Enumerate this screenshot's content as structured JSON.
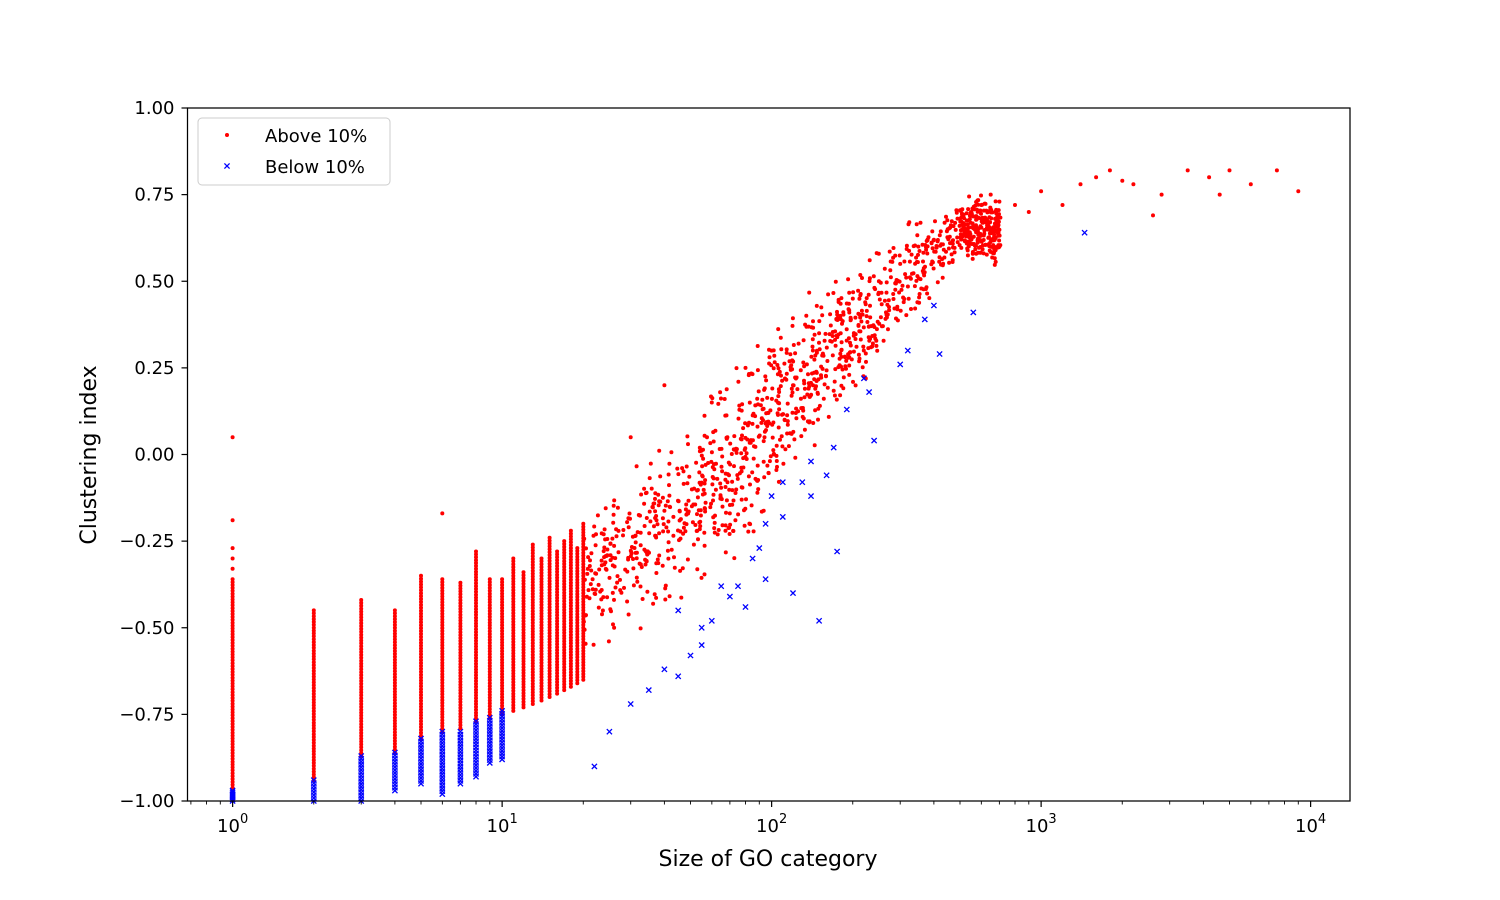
{
  "chart_data": {
    "type": "scatter",
    "title": "",
    "xlabel": "Size of GO category",
    "ylabel": "Clustering index",
    "xscale": "log",
    "xlim": [
      0.68,
      14000
    ],
    "ylim": [
      -1.0,
      1.0
    ],
    "grid": false,
    "legend_position": "top-left",
    "xticks": [
      {
        "value": 1,
        "base": "10",
        "exp": "0"
      },
      {
        "value": 10,
        "base": "10",
        "exp": "1"
      },
      {
        "value": 100,
        "base": "10",
        "exp": "2"
      },
      {
        "value": 1000,
        "base": "10",
        "exp": "3"
      },
      {
        "value": 10000,
        "base": "10",
        "exp": "4"
      }
    ],
    "yticks": [
      {
        "value": 1.0,
        "label": "1.00"
      },
      {
        "value": 0.75,
        "label": "0.75"
      },
      {
        "value": 0.5,
        "label": "0.50"
      },
      {
        "value": 0.25,
        "label": "0.25"
      },
      {
        "value": 0.0,
        "label": "0.00"
      },
      {
        "value": -0.25,
        "label": "−0.25"
      },
      {
        "value": -0.5,
        "label": "−0.50"
      },
      {
        "value": -0.75,
        "label": "−0.75"
      },
      {
        "value": -1.0,
        "label": "−1.00"
      }
    ],
    "series": [
      {
        "name": "Above 10%",
        "color": "#ff0000",
        "marker": "dot",
        "columns": [
          {
            "x": 1,
            "ymin": -0.97,
            "ymax": -0.36
          },
          {
            "x": 2,
            "ymin": -0.94,
            "ymax": -0.45
          },
          {
            "x": 3,
            "ymin": -0.87,
            "ymax": -0.42
          },
          {
            "x": 4,
            "ymin": -0.86,
            "ymax": -0.45
          },
          {
            "x": 5,
            "ymin": -0.82,
            "ymax": -0.35
          },
          {
            "x": 6,
            "ymin": -0.8,
            "ymax": -0.36
          },
          {
            "x": 7,
            "ymin": -0.79,
            "ymax": -0.37
          },
          {
            "x": 8,
            "ymin": -0.77,
            "ymax": -0.28
          },
          {
            "x": 9,
            "ymin": -0.76,
            "ymax": -0.36
          },
          {
            "x": 10,
            "ymin": -0.75,
            "ymax": -0.36
          },
          {
            "x": 11,
            "ymin": -0.74,
            "ymax": -0.3
          },
          {
            "x": 12,
            "ymin": -0.73,
            "ymax": -0.34
          },
          {
            "x": 13,
            "ymin": -0.72,
            "ymax": -0.26
          },
          {
            "x": 14,
            "ymin": -0.71,
            "ymax": -0.3
          },
          {
            "x": 15,
            "ymin": -0.7,
            "ymax": -0.24
          },
          {
            "x": 16,
            "ymin": -0.69,
            "ymax": -0.28
          },
          {
            "x": 17,
            "ymin": -0.68,
            "ymax": -0.25
          },
          {
            "x": 18,
            "ymin": -0.67,
            "ymax": -0.22
          },
          {
            "x": 19,
            "ymin": -0.66,
            "ymax": -0.27
          },
          {
            "x": 20,
            "ymin": -0.65,
            "ymax": -0.2
          }
        ],
        "points": [
          [
            1,
            0.05
          ],
          [
            1,
            -0.19
          ],
          [
            1,
            -0.27
          ],
          [
            1,
            -0.3
          ],
          [
            1,
            -0.33
          ],
          [
            6,
            -0.17
          ],
          [
            40,
            0.2
          ],
          [
            30,
            0.05
          ],
          [
            60,
            0.15
          ],
          [
            80,
            0.25
          ],
          [
            100,
            0.3
          ],
          [
            120,
            0.2
          ],
          [
            150,
            0.35
          ],
          [
            180,
            0.4
          ],
          [
            200,
            0.45
          ],
          [
            250,
            0.5
          ],
          [
            300,
            0.55
          ],
          [
            350,
            0.6
          ],
          [
            400,
            0.62
          ],
          [
            450,
            0.65
          ],
          [
            500,
            0.68
          ],
          [
            550,
            0.7
          ],
          [
            600,
            0.72
          ],
          [
            650,
            0.75
          ],
          [
            700,
            0.73
          ],
          [
            800,
            0.72
          ],
          [
            900,
            0.7
          ],
          [
            1000,
            0.76
          ],
          [
            1200,
            0.72
          ],
          [
            1400,
            0.78
          ],
          [
            1600,
            0.8
          ],
          [
            1800,
            0.82
          ],
          [
            2000,
            0.79
          ],
          [
            2200,
            0.78
          ],
          [
            2600,
            0.69
          ],
          [
            2800,
            0.75
          ],
          [
            3500,
            0.82
          ],
          [
            4200,
            0.8
          ],
          [
            4600,
            0.75
          ],
          [
            5000,
            0.82
          ],
          [
            6000,
            0.78
          ],
          [
            7500,
            0.82
          ],
          [
            9000,
            0.76
          ],
          [
            700,
            0.6
          ],
          [
            550,
            0.62
          ]
        ],
        "bulk": [
          {
            "x": 20,
            "ymid": -0.38,
            "spread": 0.15
          },
          {
            "x": 50,
            "ymid": -0.15,
            "spread": 0.2
          },
          {
            "x": 100,
            "ymid": 0.1,
            "spread": 0.2
          },
          {
            "x": 200,
            "ymid": 0.35,
            "spread": 0.15
          },
          {
            "x": 500,
            "ymid": 0.65,
            "spread": 0.08
          }
        ]
      },
      {
        "name": "Below 10%",
        "color": "#0000ff",
        "marker": "x",
        "columns": [
          {
            "x": 1,
            "ymin": -1.0,
            "ymax": -0.97
          },
          {
            "x": 2,
            "ymin": -1.0,
            "ymax": -0.94
          },
          {
            "x": 3,
            "ymin": -1.0,
            "ymax": -0.87
          },
          {
            "x": 4,
            "ymin": -0.97,
            "ymax": -0.86
          },
          {
            "x": 5,
            "ymin": -0.95,
            "ymax": -0.82
          },
          {
            "x": 6,
            "ymin": -0.98,
            "ymax": -0.8
          },
          {
            "x": 7,
            "ymin": -0.95,
            "ymax": -0.8
          },
          {
            "x": 8,
            "ymin": -0.93,
            "ymax": -0.77
          },
          {
            "x": 9,
            "ymin": -0.89,
            "ymax": -0.76
          },
          {
            "x": 10,
            "ymin": -0.88,
            "ymax": -0.74
          }
        ],
        "points": [
          [
            22,
            -0.9
          ],
          [
            25,
            -0.8
          ],
          [
            30,
            -0.72
          ],
          [
            35,
            -0.68
          ],
          [
            40,
            -0.62
          ],
          [
            45,
            -0.64
          ],
          [
            50,
            -0.58
          ],
          [
            55,
            -0.55
          ],
          [
            60,
            -0.48
          ],
          [
            65,
            -0.38
          ],
          [
            70,
            -0.41
          ],
          [
            80,
            -0.44
          ],
          [
            85,
            -0.3
          ],
          [
            90,
            -0.27
          ],
          [
            95,
            -0.2
          ],
          [
            100,
            -0.12
          ],
          [
            110,
            -0.08
          ],
          [
            120,
            -0.4
          ],
          [
            130,
            -0.08
          ],
          [
            140,
            -0.12
          ],
          [
            150,
            -0.48
          ],
          [
            160,
            -0.06
          ],
          [
            170,
            0.02
          ],
          [
            175,
            -0.28
          ],
          [
            190,
            0.13
          ],
          [
            220,
            0.22
          ],
          [
            230,
            0.18
          ],
          [
            240,
            0.04
          ],
          [
            300,
            0.26
          ],
          [
            320,
            0.3
          ],
          [
            370,
            0.39
          ],
          [
            400,
            0.43
          ],
          [
            420,
            0.29
          ],
          [
            560,
            0.41
          ],
          [
            1450,
            0.64
          ],
          [
            45,
            -0.45
          ],
          [
            55,
            -0.5
          ],
          [
            75,
            -0.38
          ],
          [
            95,
            -0.36
          ],
          [
            110,
            -0.18
          ],
          [
            140,
            -0.02
          ]
        ]
      }
    ]
  }
}
